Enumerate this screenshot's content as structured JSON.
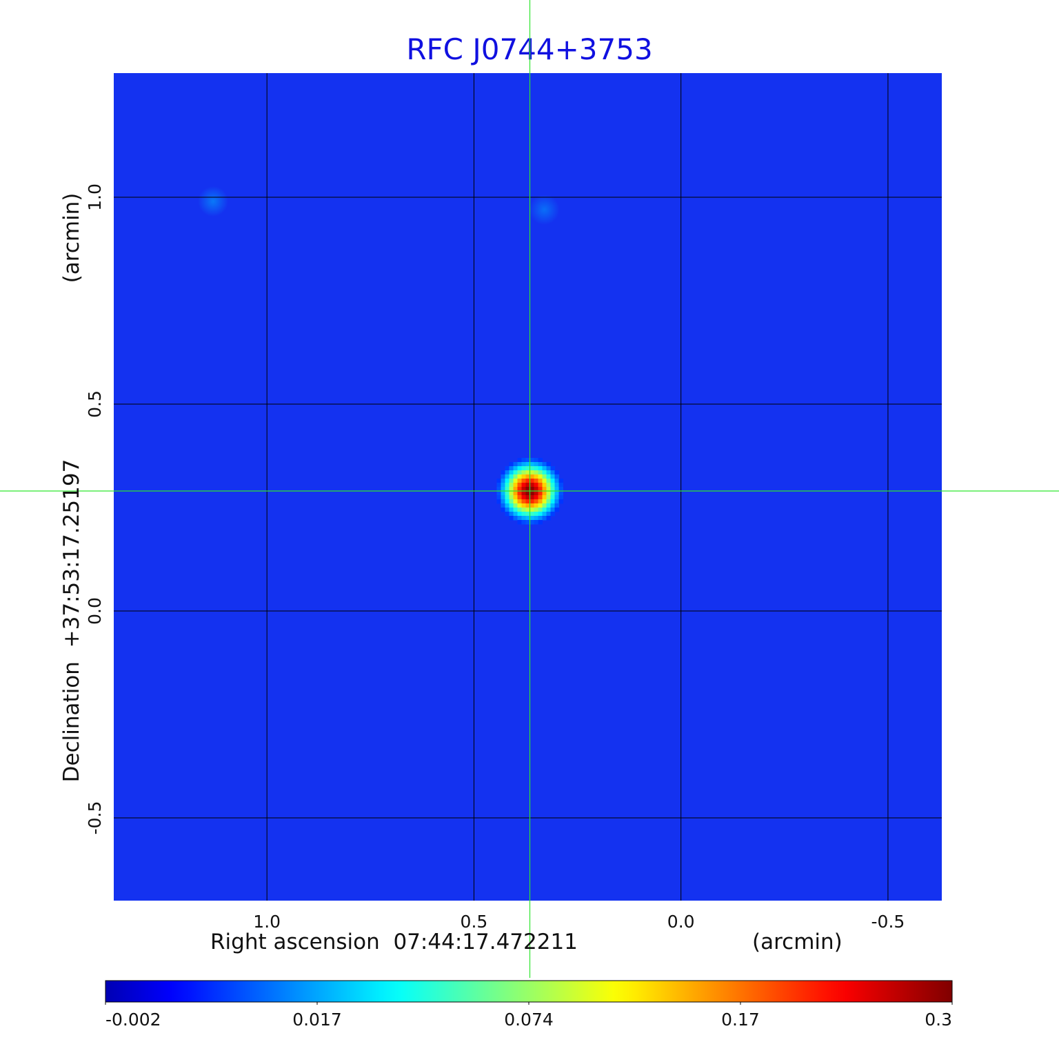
{
  "chart_data": {
    "type": "heatmap",
    "title": "RFC J0744+3753",
    "xlabel": "Right ascension  07:44:17.472211",
    "xunit": "(arcmin)",
    "ylabel": "Declination  +37:53:17.25197",
    "yunit": "(arcmin)",
    "x_range": [
      1.37,
      -0.63
    ],
    "y_range": [
      -0.7,
      1.3
    ],
    "x_ticks": [
      {
        "value": 1.0,
        "label": "1.0"
      },
      {
        "value": 0.5,
        "label": "0.5"
      },
      {
        "value": 0.0,
        "label": "0.0"
      },
      {
        "value": -0.5,
        "label": "-0.5"
      }
    ],
    "y_ticks": [
      {
        "value": 1.0,
        "label": "1.0"
      },
      {
        "value": 0.5,
        "label": "0.5"
      },
      {
        "value": 0.0,
        "label": "0.0"
      },
      {
        "value": -0.5,
        "label": "-0.5"
      }
    ],
    "grid": true,
    "crosshair": {
      "x": 0.365,
      "y": 0.29,
      "color": "#2ee62e"
    },
    "sources": [
      {
        "x": 0.365,
        "y": 0.29,
        "peak": 0.3,
        "sigma_arcmin": 0.03
      }
    ],
    "faint_features": [
      {
        "x": 1.13,
        "y": 0.99,
        "value": 0.01
      },
      {
        "x": 0.33,
        "y": 0.97,
        "value": 0.008
      }
    ],
    "background_value": 0.003,
    "colorbar": {
      "ticks": [
        "-0.002",
        "0.017",
        "0.074",
        "0.17",
        "0.3"
      ],
      "colormap": "jet",
      "min": -0.002,
      "max": 0.3
    },
    "colors": {
      "background": "#1432f0",
      "grid": "#000000",
      "title": "#1010e0"
    }
  }
}
